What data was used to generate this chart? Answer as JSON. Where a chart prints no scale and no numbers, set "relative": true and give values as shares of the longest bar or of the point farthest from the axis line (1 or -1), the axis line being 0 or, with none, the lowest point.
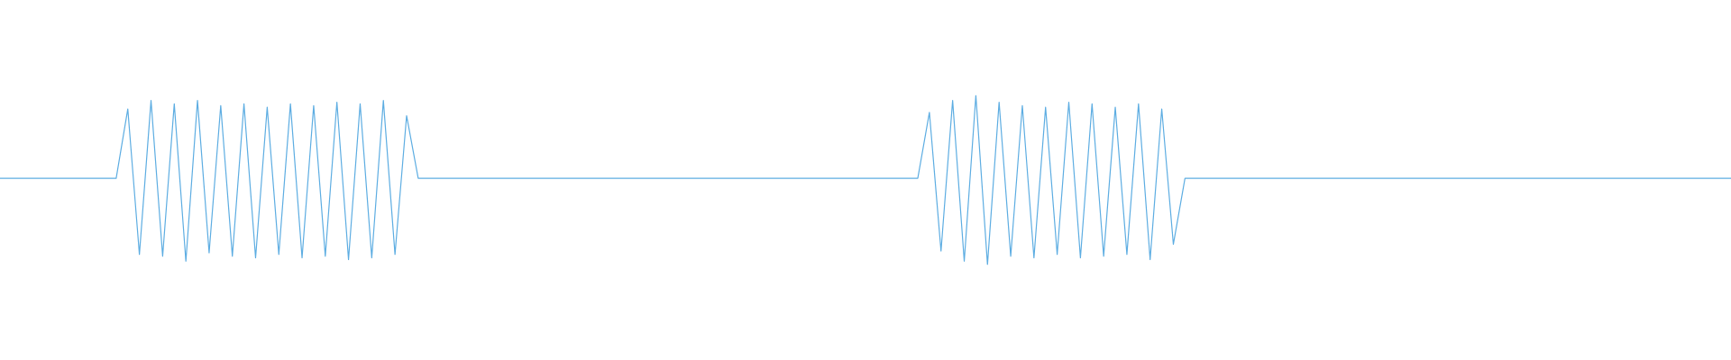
{
  "chart_data": {
    "type": "line",
    "relative": true,
    "color": "#5dade2",
    "marker": "none",
    "line_style": "solid",
    "categories": [
      null,
      null,
      null,
      null,
      null,
      null,
      null,
      null,
      null,
      null,
      null,
      null,
      null,
      null,
      null,
      null,
      null,
      null,
      null,
      null,
      null,
      null,
      null,
      null,
      null,
      null,
      null,
      null,
      null,
      null,
      null,
      null,
      null,
      null,
      null,
      null,
      null,
      null,
      null,
      null,
      null,
      null,
      null,
      null,
      null,
      null,
      null,
      null,
      null,
      null,
      null,
      null,
      null,
      null,
      null,
      null,
      null,
      null,
      null,
      null,
      null,
      null,
      null,
      null,
      null,
      null,
      null,
      null,
      null,
      null,
      null,
      null,
      null,
      null,
      null,
      null,
      null,
      null,
      null,
      null,
      null,
      null,
      null,
      null,
      null,
      null,
      null,
      null,
      null,
      null,
      null,
      null,
      null,
      null,
      null,
      null,
      null,
      null,
      null,
      null,
      null,
      null,
      null,
      null,
      null,
      null,
      null,
      null,
      null,
      null,
      null,
      null,
      null,
      null,
      null,
      null,
      null,
      null,
      null,
      null,
      null,
      null,
      null,
      null,
      null,
      null,
      null,
      null,
      null,
      null,
      null,
      null,
      null,
      null,
      null,
      null,
      null,
      null,
      null,
      null,
      null,
      null,
      null,
      null,
      null,
      null,
      null,
      null,
      null,
      null
    ],
    "values": [
      0.51,
      0.51,
      0.51,
      0.51,
      0.51,
      0.51,
      0.51,
      0.51,
      0.51,
      0.51,
      0.51,
      0.92,
      0.06,
      0.97,
      0.05,
      0.95,
      0.02,
      0.97,
      0.07,
      0.94,
      0.05,
      0.95,
      0.04,
      0.93,
      0.06,
      0.95,
      0.04,
      0.94,
      0.05,
      0.96,
      0.03,
      0.95,
      0.04,
      0.97,
      0.06,
      0.88,
      0.51,
      0.51,
      0.51,
      0.51,
      0.51,
      0.51,
      0.51,
      0.51,
      0.51,
      0.51,
      0.51,
      0.51,
      0.51,
      0.51,
      0.51,
      0.51,
      0.51,
      0.51,
      0.51,
      0.51,
      0.51,
      0.51,
      0.51,
      0.51,
      0.51,
      0.51,
      0.51,
      0.51,
      0.51,
      0.51,
      0.51,
      0.51,
      0.51,
      0.51,
      0.51,
      0.51,
      0.51,
      0.51,
      0.51,
      0.51,
      0.51,
      0.51,
      0.51,
      0.51,
      0.9,
      0.08,
      0.97,
      0.02,
      1,
      0,
      0.96,
      0.05,
      0.94,
      0.04,
      0.93,
      0.06,
      0.96,
      0.04,
      0.95,
      0.05,
      0.93,
      0.06,
      0.95,
      0.03,
      0.92,
      0.12,
      0.51,
      0.51,
      0.51,
      0.51,
      0.51,
      0.51,
      0.51,
      0.51,
      0.51,
      0.51,
      0.51,
      0.51,
      0.51,
      0.51,
      0.51,
      0.51,
      0.51,
      0.51,
      0.51,
      0.51,
      0.51,
      0.51,
      0.51,
      0.51,
      0.51,
      0.51,
      0.51,
      0.51,
      0.51,
      0.51,
      0.51,
      0.51,
      0.51,
      0.51,
      0.51,
      0.51,
      0.51,
      0.51,
      0.51,
      0.51,
      0.51,
      0.51,
      0.51,
      0.51,
      0.51,
      0.51,
      0.51,
      0.51
    ]
  }
}
